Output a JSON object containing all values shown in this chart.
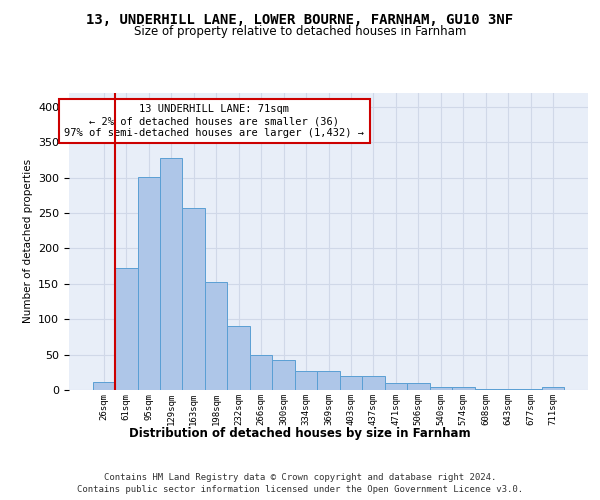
{
  "title1": "13, UNDERHILL LANE, LOWER BOURNE, FARNHAM, GU10 3NF",
  "title2": "Size of property relative to detached houses in Farnham",
  "xlabel": "Distribution of detached houses by size in Farnham",
  "ylabel": "Number of detached properties",
  "bin_labels": [
    "26sqm",
    "61sqm",
    "95sqm",
    "129sqm",
    "163sqm",
    "198sqm",
    "232sqm",
    "266sqm",
    "300sqm",
    "334sqm",
    "369sqm",
    "403sqm",
    "437sqm",
    "471sqm",
    "506sqm",
    "540sqm",
    "574sqm",
    "608sqm",
    "643sqm",
    "677sqm",
    "711sqm"
  ],
  "bar_values": [
    12,
    172,
    301,
    328,
    257,
    153,
    91,
    50,
    43,
    27,
    27,
    20,
    20,
    10,
    10,
    4,
    4,
    1,
    1,
    1,
    4
  ],
  "bar_color": "#aec6e8",
  "bar_edge_color": "#5a9fd4",
  "grid_color": "#d0d8e8",
  "background_color": "#e8eef8",
  "vline_color": "#cc0000",
  "annotation_text": "13 UNDERHILL LANE: 71sqm\n← 2% of detached houses are smaller (36)\n97% of semi-detached houses are larger (1,432) →",
  "annotation_box_color": "#ffffff",
  "annotation_box_edge_color": "#cc0000",
  "footnote1": "Contains HM Land Registry data © Crown copyright and database right 2024.",
  "footnote2": "Contains public sector information licensed under the Open Government Licence v3.0.",
  "ylim": [
    0,
    420
  ],
  "yticks": [
    0,
    50,
    100,
    150,
    200,
    250,
    300,
    350,
    400
  ]
}
